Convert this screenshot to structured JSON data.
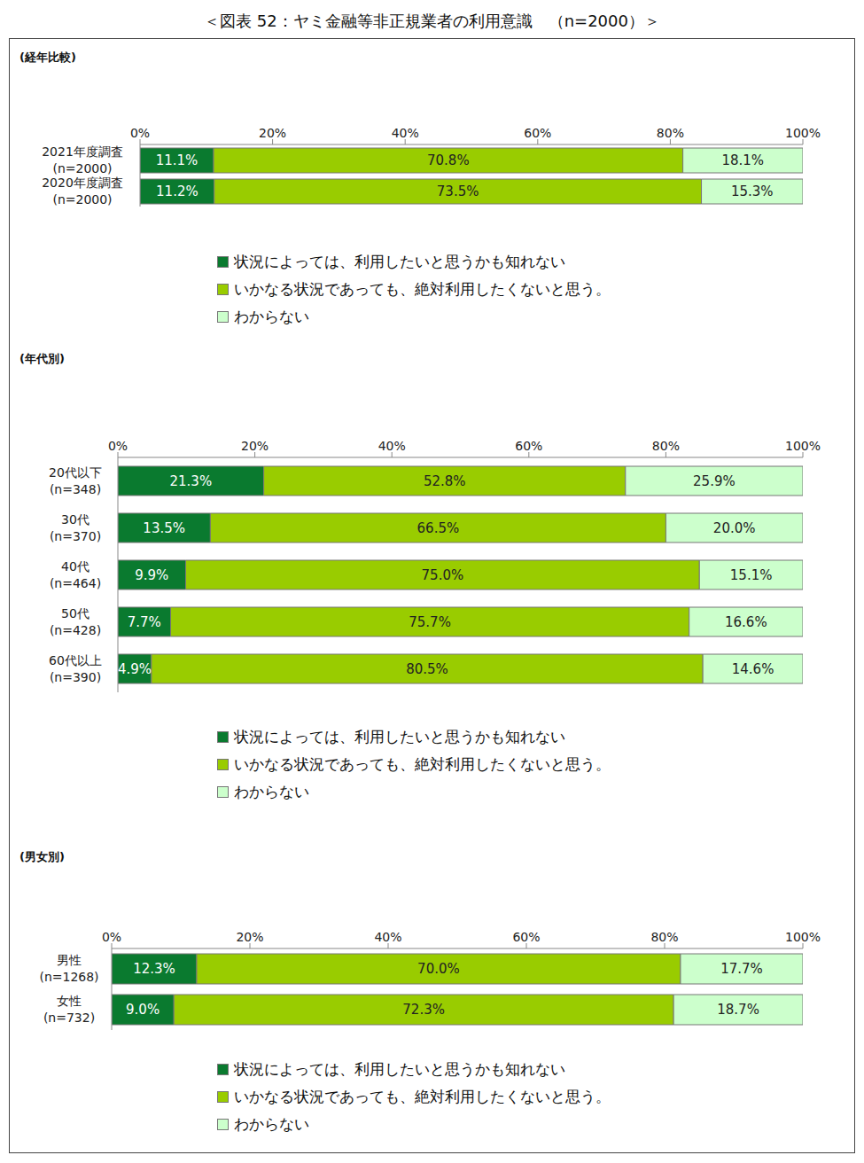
{
  "title": "＜図表 52：ヤミ金融等非正規業者の利用意識　（n=2000）＞",
  "chart_data": [
    {
      "type": "bar",
      "title": "(経年比較)",
      "orientation": "horizontal",
      "stacked": true,
      "data_labels": true,
      "grid": false,
      "legend": "bottom",
      "categories": [
        "2021年度調査\n(n=2000)",
        "2020年度調査\n(n=2000)"
      ],
      "xlim": [
        0,
        100
      ],
      "xticks": [
        {
          "value": 0,
          "label": "0%"
        },
        {
          "value": 20,
          "label": "20%"
        },
        {
          "value": 40,
          "label": "40%"
        },
        {
          "value": 60,
          "label": "60%"
        },
        {
          "value": 80,
          "label": "80%"
        },
        {
          "value": 100,
          "label": "100%"
        }
      ],
      "series": [
        {
          "name": "状況によっては、利用したいと思うかも知れない",
          "color": "#0a7a2f",
          "values": [
            11.1,
            11.2
          ],
          "value_labels": [
            "11.1%",
            "11.2%"
          ]
        },
        {
          "name": "いかなる状況であっても、絶対利用したくないと思う。",
          "color": "#99cc00",
          "values": [
            70.8,
            73.5
          ],
          "value_labels": [
            "70.8%",
            "73.5%"
          ]
        },
        {
          "name": "わからない",
          "color": "#ccffcc",
          "values": [
            18.1,
            15.3
          ],
          "value_labels": [
            "18.1%",
            "15.3%"
          ]
        }
      ]
    },
    {
      "type": "bar",
      "title": "(年代別)",
      "orientation": "horizontal",
      "stacked": true,
      "data_labels": true,
      "grid": false,
      "legend": "bottom",
      "categories": [
        "20代以下\n(n=348)",
        "30代\n(n=370)",
        "40代\n(n=464)",
        "50代\n(n=428)",
        "60代以上\n(n=390)"
      ],
      "xlim": [
        0,
        100
      ],
      "xticks": [
        {
          "value": 0,
          "label": "0%"
        },
        {
          "value": 20,
          "label": "20%"
        },
        {
          "value": 40,
          "label": "40%"
        },
        {
          "value": 60,
          "label": "60%"
        },
        {
          "value": 80,
          "label": "80%"
        },
        {
          "value": 100,
          "label": "100%"
        }
      ],
      "series": [
        {
          "name": "状況によっては、利用したいと思うかも知れない",
          "color": "#0a7a2f",
          "values": [
            21.3,
            13.5,
            9.9,
            7.7,
            4.9
          ],
          "value_labels": [
            "21.3%",
            "13.5%",
            "9.9%",
            "7.7%",
            "4.9%"
          ]
        },
        {
          "name": "いかなる状況であっても、絶対利用したくないと思う。",
          "color": "#99cc00",
          "values": [
            52.8,
            66.5,
            75.0,
            75.7,
            80.5
          ],
          "value_labels": [
            "52.8%",
            "66.5%",
            "75.0%",
            "75.7%",
            "80.5%"
          ]
        },
        {
          "name": "わからない",
          "color": "#ccffcc",
          "values": [
            25.9,
            20.0,
            15.1,
            16.6,
            14.6
          ],
          "value_labels": [
            "25.9%",
            "20.0%",
            "15.1%",
            "16.6%",
            "14.6%"
          ]
        }
      ]
    },
    {
      "type": "bar",
      "title": "(男女別)",
      "orientation": "horizontal",
      "stacked": true,
      "data_labels": true,
      "grid": false,
      "legend": "bottom",
      "categories": [
        "男性\n(n=1268)",
        "女性\n(n=732)"
      ],
      "xlim": [
        0,
        100
      ],
      "xticks": [
        {
          "value": 0,
          "label": "0%"
        },
        {
          "value": 20,
          "label": "20%"
        },
        {
          "value": 40,
          "label": "40%"
        },
        {
          "value": 60,
          "label": "60%"
        },
        {
          "value": 80,
          "label": "80%"
        },
        {
          "value": 100,
          "label": "100%"
        }
      ],
      "series": [
        {
          "name": "状況によっては、利用したいと思うかも知れない",
          "color": "#0a7a2f",
          "values": [
            12.3,
            9.0
          ],
          "value_labels": [
            "12.3%",
            "9.0%"
          ]
        },
        {
          "name": "いかなる状況であっても、絶対利用したくないと思う。",
          "color": "#99cc00",
          "values": [
            70.0,
            72.3
          ],
          "value_labels": [
            "70.0%",
            "72.3%"
          ]
        },
        {
          "name": "わからない",
          "color": "#ccffcc",
          "values": [
            17.7,
            18.7
          ],
          "value_labels": [
            "17.7%",
            "18.7%"
          ]
        }
      ]
    }
  ]
}
